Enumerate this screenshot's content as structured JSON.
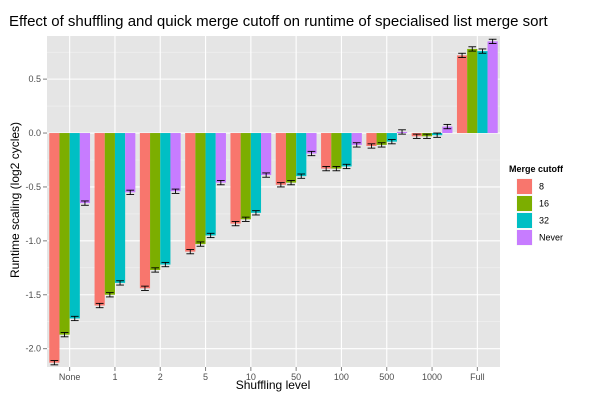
{
  "chart_data": {
    "type": "bar",
    "title": "Effect of shuffling and quick merge cutoff on runtime of specialised list merge sort",
    "xlabel": "Shuffling level",
    "ylabel": "Runtime scaling (log2 cycles)",
    "categories": [
      "None",
      "1",
      "2",
      "5",
      "10",
      "50",
      "100",
      "500",
      "1000",
      "Full"
    ],
    "ylim": [
      -2.17,
      0.9
    ],
    "yticks": [
      -2.0,
      -1.5,
      -1.0,
      -0.5,
      0.0,
      0.5
    ],
    "ytick_labels": [
      "-2.0",
      "-1.5",
      "-1.0",
      "-0.5",
      "0.0",
      "0.5"
    ],
    "grid": true,
    "legend_position": "right",
    "legend_title": "Merge cutoff",
    "series": [
      {
        "name": "8",
        "color": "#F8766D",
        "values": [
          -2.13,
          -1.6,
          -1.44,
          -1.1,
          -0.84,
          -0.48,
          -0.33,
          -0.12,
          -0.03,
          0.72
        ],
        "errors": [
          0.02,
          0.02,
          0.02,
          0.02,
          0.02,
          0.02,
          0.02,
          0.02,
          0.02,
          0.02
        ]
      },
      {
        "name": "16",
        "color": "#7CAE00",
        "values": [
          -1.87,
          -1.5,
          -1.27,
          -1.03,
          -0.8,
          -0.46,
          -0.33,
          -0.11,
          -0.03,
          0.78
        ],
        "errors": [
          0.02,
          0.02,
          0.02,
          0.02,
          0.02,
          0.02,
          0.02,
          0.02,
          0.02,
          0.02
        ]
      },
      {
        "name": "32",
        "color": "#00BFC4",
        "values": [
          -1.72,
          -1.39,
          -1.22,
          -0.95,
          -0.74,
          -0.4,
          -0.31,
          -0.08,
          -0.02,
          0.76
        ],
        "errors": [
          0.02,
          0.02,
          0.02,
          0.02,
          0.02,
          0.02,
          0.02,
          0.02,
          0.02,
          0.02
        ]
      },
      {
        "name": "Never",
        "color": "#C77CFF",
        "values": [
          -0.65,
          -0.55,
          -0.54,
          -0.46,
          -0.39,
          -0.19,
          -0.11,
          0.01,
          0.06,
          0.85
        ],
        "errors": [
          0.02,
          0.02,
          0.02,
          0.02,
          0.02,
          0.02,
          0.02,
          0.02,
          0.02,
          0.02
        ]
      }
    ]
  }
}
